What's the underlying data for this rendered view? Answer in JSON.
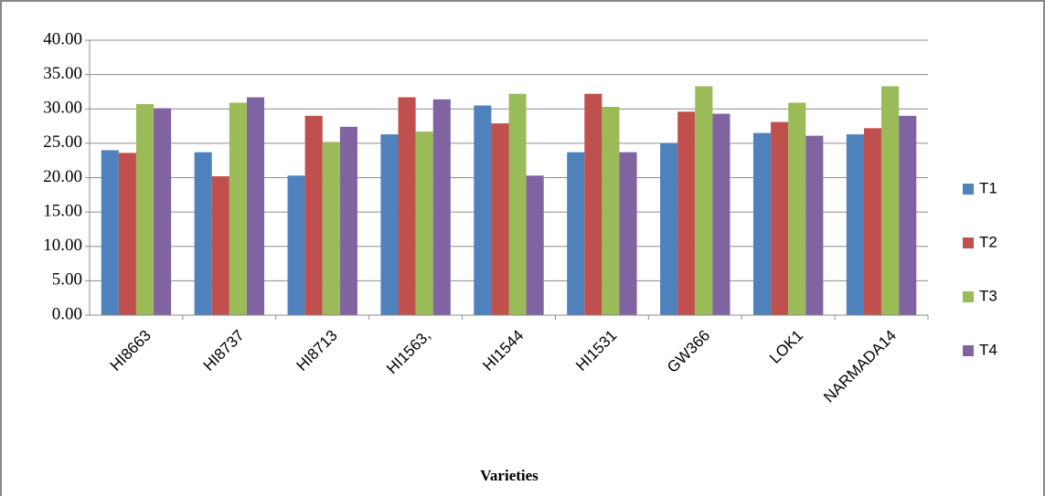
{
  "chart_data": {
    "type": "bar",
    "x_label": "Varieties",
    "categories": [
      "HI8663",
      "HI8737",
      "HI8713",
      "HI1563,",
      "HI1544",
      "HI1531",
      "GW366",
      "LOK1",
      "NARMADA14"
    ],
    "series": [
      {
        "name": "T1",
        "color": "#4f81bd",
        "values": [
          24.0,
          23.7,
          20.3,
          26.3,
          30.5,
          23.7,
          25.0,
          26.5,
          26.3
        ]
      },
      {
        "name": "T2",
        "color": "#c0504d",
        "values": [
          23.6,
          20.2,
          29.0,
          31.7,
          27.9,
          32.2,
          29.6,
          28.1,
          27.2
        ]
      },
      {
        "name": "T3",
        "color": "#9bbb59",
        "values": [
          30.7,
          30.9,
          25.2,
          26.7,
          32.2,
          30.3,
          33.3,
          30.9,
          33.3
        ]
      },
      {
        "name": "T4",
        "color": "#8064a2",
        "values": [
          30.1,
          31.7,
          27.4,
          31.4,
          20.3,
          23.7,
          29.3,
          26.1,
          29.0
        ]
      }
    ],
    "ylim": [
      0,
      40
    ],
    "yticks": [
      {
        "value": 0,
        "label": "0.00"
      },
      {
        "value": 5,
        "label": "5.00"
      },
      {
        "value": 10,
        "label": "10.00"
      },
      {
        "value": 15,
        "label": "15.00"
      },
      {
        "value": 20,
        "label": "20.00"
      },
      {
        "value": 25,
        "label": "25.00"
      },
      {
        "value": 30,
        "label": "30.00"
      },
      {
        "value": 35,
        "label": "35.00"
      },
      {
        "value": 40,
        "label": "40.00"
      }
    ],
    "grid": true,
    "legend": "right"
  }
}
